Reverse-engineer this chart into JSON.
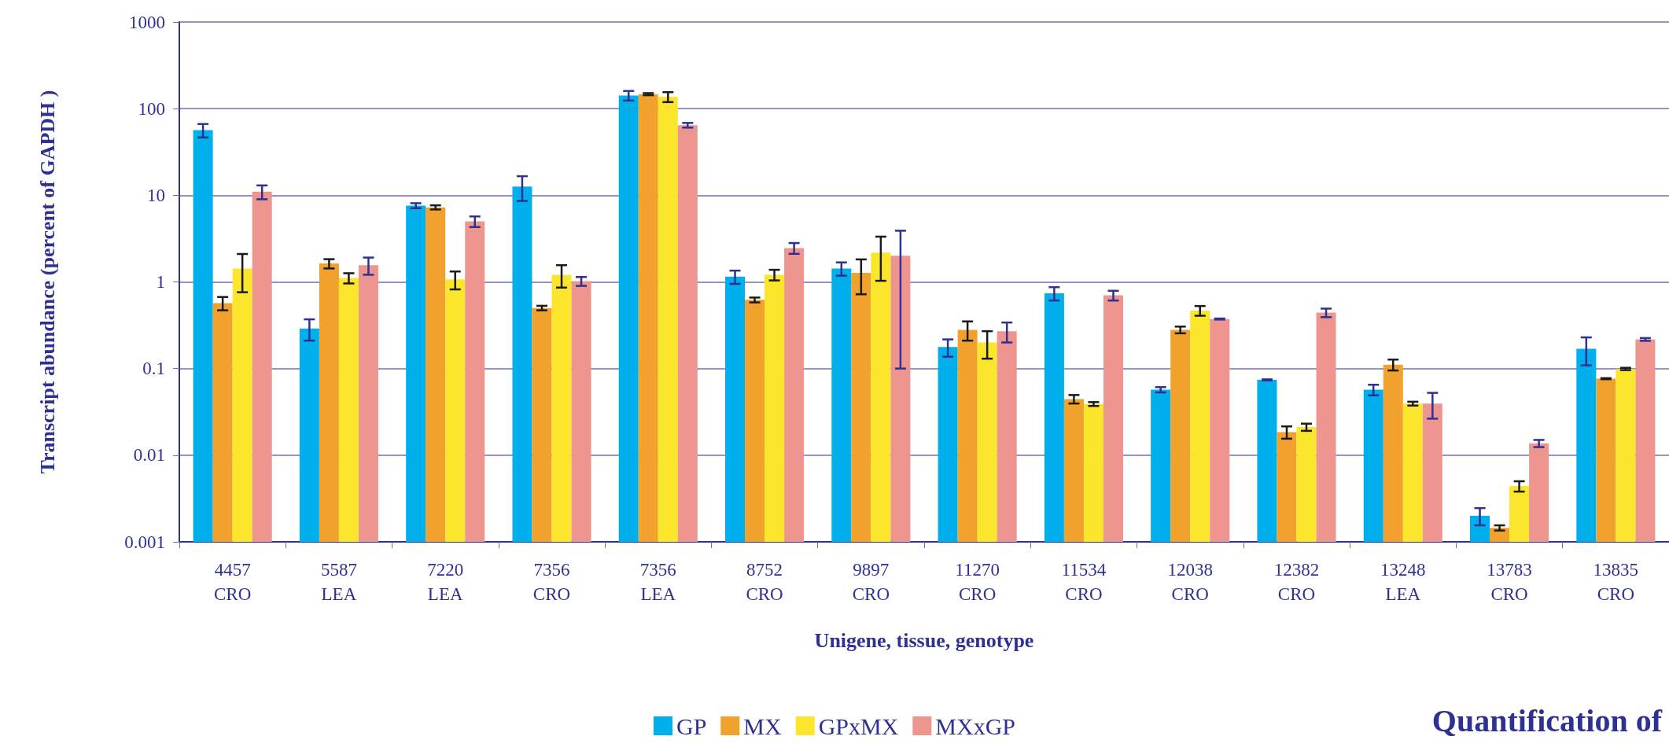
{
  "chart_data": {
    "type": "bar",
    "title": "Quantification of",
    "xlabel": "Unigene, tissue, genotype",
    "ylabel": "Transcript abundance (percent of GAPDH )",
    "categories": [
      "4457\nCRO",
      "5587\nLEA",
      "7220\nLEA",
      "7356\nCRO",
      "7356\nLEA",
      "8752\nCRO",
      "9897\nCRO",
      "11270\nCRO",
      "11534\nCRO",
      "12038\nCRO",
      "12382\nCRO",
      "13248\nLEA",
      "13783\nCRO",
      "13835\nCRO"
    ],
    "series": [
      {
        "name": "GP",
        "color": "#00b0ec",
        "values": [
          56.5,
          0.29,
          7.6,
          12.6,
          142,
          1.15,
          1.43,
          0.177,
          0.74,
          0.057,
          0.074,
          0.057,
          0.002,
          0.169
        ],
        "errors": [
          10,
          0.08,
          0.5,
          4,
          18,
          0.2,
          0.25,
          0.04,
          0.13,
          0.004,
          0.001,
          0.008,
          0.00045,
          0.06
        ]
      },
      {
        "name": "MX",
        "color": "#f0a22c",
        "values": [
          0.57,
          1.63,
          7.26,
          0.5,
          147,
          0.62,
          1.27,
          0.28,
          0.0445,
          0.28,
          0.0185,
          0.111,
          0.00145,
          0.0764
        ],
        "errors": [
          0.1,
          0.2,
          0.4,
          0.03,
          4,
          0.04,
          0.55,
          0.07,
          0.005,
          0.025,
          0.003,
          0.016,
          0.0001,
          0.001
        ]
      },
      {
        "name": "GPxMX",
        "color": "#fbe62c",
        "values": [
          1.43,
          1.11,
          1.07,
          1.21,
          137,
          1.21,
          2.18,
          0.2,
          0.039,
          0.467,
          0.0211,
          0.0394,
          0.0044,
          0.099
        ],
        "errors": [
          0.67,
          0.15,
          0.25,
          0.35,
          18,
          0.17,
          1.15,
          0.07,
          0.002,
          0.06,
          0.002,
          0.002,
          0.0006,
          0.003
        ]
      },
      {
        "name": "MXxGP",
        "color": "#ef9590",
        "values": [
          11,
          1.56,
          5,
          1.02,
          64.4,
          2.46,
          2,
          0.27,
          0.7,
          0.373,
          0.442,
          0.0394,
          0.0137,
          0.217
        ],
        "errors": [
          2,
          0.35,
          0.7,
          0.12,
          4,
          0.35,
          1.9,
          0.07,
          0.09,
          0.005,
          0.05,
          0.013,
          0.0013,
          0.008
        ]
      }
    ],
    "log": "y",
    "ylim": [
      0.001,
      1000
    ],
    "yticks": [
      0.001,
      0.01,
      0.1,
      1,
      10,
      100,
      1000
    ],
    "grid": "y",
    "legend": "bottom"
  }
}
